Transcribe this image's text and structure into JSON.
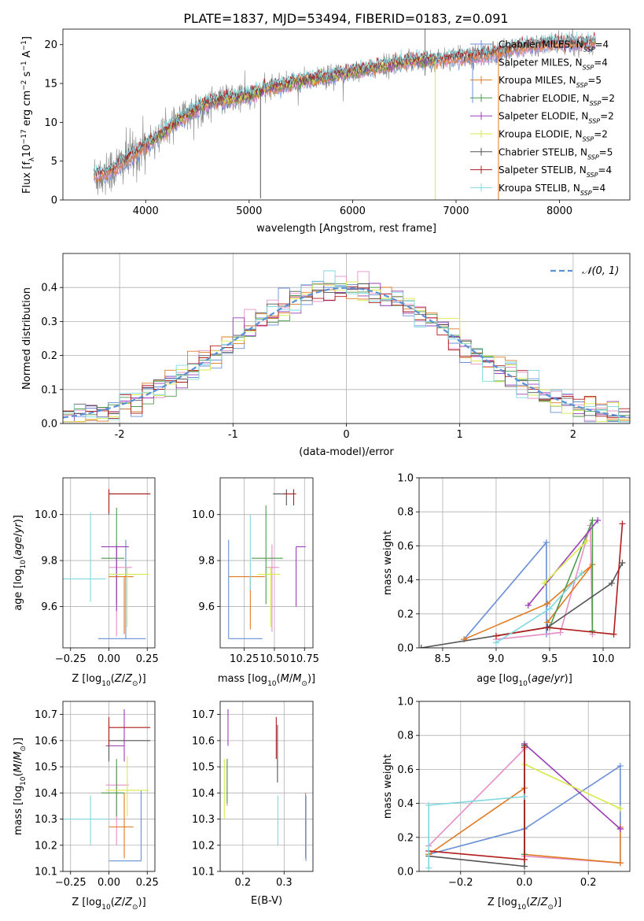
{
  "figure": {
    "title": "PLATE=1837, MJD=53494, FIBERID=0183, z=0.091"
  },
  "series_styles": [
    {
      "name": "Chabrier MILES",
      "color": "#6a8fd6"
    },
    {
      "name": "Salpeter MILES",
      "color": "#e58fc6"
    },
    {
      "name": "Kroupa MILES",
      "color": "#e07b22"
    },
    {
      "name": "Chabrier ELODIE",
      "color": "#4e9a4e"
    },
    {
      "name": "Salpeter ELODIE",
      "color": "#9b3fb8"
    },
    {
      "name": "Kroupa ELODIE",
      "color": "#d8ea4a"
    },
    {
      "name": "Chabrier STELIB",
      "color": "#555555"
    },
    {
      "name": "Salpeter STELIB",
      "color": "#b01c1c"
    },
    {
      "name": "Kroupa STELIB",
      "color": "#7fd8e0"
    }
  ],
  "chart_data": [
    {
      "id": "spectrum",
      "type": "line",
      "xlabel": "wavelength [Angstrom, rest frame]",
      "ylabel": "Flux [f_λ 10^-17 erg cm^-2 s^-1 A^-1]",
      "xlim": [
        3200,
        8680
      ],
      "ylim": [
        0,
        22
      ],
      "xticks": [
        4000,
        5000,
        6000,
        7000,
        8000
      ],
      "yticks": [
        0,
        5,
        10,
        15,
        20
      ],
      "legend_position": "top-right",
      "legend": [
        "Chabrier MILES, N_SSP=4",
        "Salpeter MILES, N_SSP=4",
        "Kroupa MILES, N_SSP=5",
        "Chabrier ELODIE, N_SSP=2",
        "Salpeter ELODIE, N_SSP=2",
        "Kroupa ELODIE, N_SSP=2",
        "Chabrier STELIB, N_SSP=5",
        "Salpeter STELIB, N_SSP=4",
        "Kroupa STELIB, N_SSP=4"
      ],
      "data_continuum": {
        "x": [
          3500,
          3700,
          3900,
          4000,
          4200,
          4400,
          4600,
          4800,
          5000,
          5200,
          5400,
          5600,
          5800,
          6000,
          6200,
          6400,
          6600,
          6800,
          7000,
          7200,
          7400,
          7600,
          7800,
          8000,
          8200,
          8350
        ],
        "y": [
          3.0,
          4.0,
          6.0,
          7.0,
          9.0,
          11.0,
          12.5,
          13.0,
          13.5,
          14.5,
          15.0,
          15.5,
          16.0,
          16.5,
          17.0,
          17.5,
          18.0,
          18.0,
          18.3,
          18.6,
          19.0,
          19.6,
          20.0,
          20.2,
          20.1,
          20.3
        ]
      },
      "spike_features": [
        {
          "x": 5110,
          "y": 0.2,
          "color": "#555555"
        },
        {
          "x": 6800,
          "y": 0.0,
          "color": "#d8ea4a"
        },
        {
          "x": 7410,
          "y": 0.0,
          "color": "#e07b22"
        },
        {
          "x": 7160,
          "y": 12.5,
          "color": "#6a8fd6"
        },
        {
          "x": 6700,
          "y": 22.0,
          "color": "#777777"
        }
      ]
    },
    {
      "id": "residuals",
      "type": "histogram",
      "xlabel": "(data-model)/error",
      "ylabel": "Normed distribution",
      "xlim": [
        -2.5,
        2.5
      ],
      "ylim": [
        0,
        0.5
      ],
      "xticks": [
        -2,
        -1,
        0,
        1,
        2
      ],
      "yticks": [
        0.0,
        0.1,
        0.2,
        0.3,
        0.4
      ],
      "grid": true,
      "legend_position": "top-right",
      "legend": [
        "𝒩(0, 1)"
      ],
      "reference_color": "#5b8fd6",
      "bin_width": 0.1,
      "bin_start": -2.5
    },
    {
      "id": "age_vs_Z",
      "type": "errorbar",
      "xlabel": "Z [log10(Z/Z⊙)]",
      "ylabel": "age [log10(age/yr)]",
      "xlim": [
        -0.3,
        0.3
      ],
      "ylim": [
        9.42,
        10.16
      ],
      "xticks": [
        -0.25,
        0.0,
        0.25
      ],
      "xtick_labels": [
        "−0.25",
        "0.00",
        "0.25"
      ],
      "yticks": [
        9.6,
        9.8,
        10.0
      ],
      "grid": true,
      "points": [
        {
          "s": 0,
          "x": 0.11,
          "xerr": [
            0.18,
            0.13
          ],
          "y": 9.46,
          "yerr": [
            0.0,
            0.43
          ]
        },
        {
          "s": 1,
          "x": 0.05,
          "xerr": [
            0.05,
            0.1
          ],
          "y": 9.77,
          "yerr": [
            0.3,
            0.1
          ]
        },
        {
          "s": 2,
          "x": 0.1,
          "xerr": [
            0.1,
            0.06
          ],
          "y": 9.73,
          "yerr": [
            0.25,
            0.0
          ]
        },
        {
          "s": 3,
          "x": 0.05,
          "xerr": [
            0.1,
            0.05
          ],
          "y": 9.81,
          "yerr": [
            0.2,
            0.22
          ]
        },
        {
          "s": 4,
          "x": 0.05,
          "xerr": [
            0.1,
            0.08
          ],
          "y": 9.86,
          "yerr": [
            0.28,
            0.0
          ]
        },
        {
          "s": 5,
          "x": 0.12,
          "xerr": [
            0.12,
            0.14
          ],
          "y": 9.74,
          "yerr": [
            0.23,
            0.03
          ]
        },
        {
          "s": 6,
          "x": 0.0,
          "xerr": [
            0.0,
            0.27
          ],
          "y": 10.09,
          "yerr": [
            0.09,
            0.02
          ]
        },
        {
          "s": 7,
          "x": 0.0,
          "xerr": [
            0.0,
            0.27
          ],
          "y": 10.09,
          "yerr": [
            0.08,
            0.02
          ]
        },
        {
          "s": 8,
          "x": -0.12,
          "xerr": [
            0.18,
            0.1
          ],
          "y": 9.72,
          "yerr": [
            0.1,
            0.29
          ]
        }
      ]
    },
    {
      "id": "age_vs_mass",
      "type": "errorbar",
      "xlabel": "mass [log10(M/M⊙)]",
      "ylabel": "",
      "xlim": [
        10.05,
        10.82
      ],
      "ylim": [
        9.42,
        10.16
      ],
      "xticks": [
        10.25,
        10.5,
        10.75
      ],
      "xtick_labels": [
        "10.25",
        "10.50",
        "10.75"
      ],
      "yticks": [
        9.6,
        9.8,
        10.0
      ],
      "grid": true,
      "points": [
        {
          "s": 0,
          "x": 10.12,
          "xerr": [
            0.0,
            0.28
          ],
          "y": 9.46,
          "yerr": [
            0.0,
            0.43
          ]
        },
        {
          "s": 1,
          "x": 10.48,
          "xerr": [
            0.05,
            0.06
          ],
          "y": 9.77,
          "yerr": [
            0.28,
            0.1
          ]
        },
        {
          "s": 2,
          "x": 10.3,
          "xerr": [
            0.18,
            0.12
          ],
          "y": 9.73,
          "yerr": [
            0.23,
            0.0
          ]
        },
        {
          "s": 3,
          "x": 10.43,
          "xerr": [
            0.12,
            0.14
          ],
          "y": 9.81,
          "yerr": [
            0.2,
            0.23
          ]
        },
        {
          "s": 4,
          "x": 10.68,
          "xerr": [
            0.0,
            0.08
          ],
          "y": 9.86,
          "yerr": [
            0.26,
            0.0
          ]
        },
        {
          "s": 5,
          "x": 10.47,
          "xerr": [
            0.11,
            0.08
          ],
          "y": 9.74,
          "yerr": [
            0.23,
            0.03
          ]
        },
        {
          "s": 6,
          "x": 10.6,
          "xerr": [
            0.11,
            0.0
          ],
          "y": 10.09,
          "yerr": [
            0.05,
            0.02
          ]
        },
        {
          "s": 7,
          "x": 10.66,
          "xerr": [
            0.08,
            0.02
          ],
          "y": 10.09,
          "yerr": [
            0.05,
            0.02
          ]
        },
        {
          "s": 8,
          "x": 10.3,
          "xerr": [
            0.0,
            0.0
          ],
          "y": 9.72,
          "yerr": [
            0.05,
            0.28
          ]
        }
      ]
    },
    {
      "id": "mass_weight_vs_age",
      "type": "line",
      "xlabel": "age [log10(age/yr)]",
      "ylabel": "mass weight",
      "xlim": [
        8.28,
        10.25
      ],
      "ylim": [
        0,
        1.0
      ],
      "xticks": [
        8.5,
        9.0,
        9.5,
        10.0
      ],
      "xtick_labels": [
        "8.5",
        "9.0",
        "9.5",
        "10.0"
      ],
      "yticks": [
        0.0,
        0.2,
        0.4,
        0.6,
        0.8,
        1.0
      ],
      "grid": true,
      "series": [
        {
          "s": 0,
          "x": [
            8.7,
            9.47,
            9.47,
            9.47
          ],
          "y": [
            0.05,
            0.62,
            0.12,
            0.08
          ]
        },
        {
          "s": 1,
          "x": [
            9.0,
            9.6,
            9.88,
            9.9
          ],
          "y": [
            0.05,
            0.09,
            0.72,
            0.08
          ]
        },
        {
          "s": 2,
          "x": [
            8.7,
            9.48,
            9.9,
            9.48
          ],
          "y": [
            0.05,
            0.26,
            0.49,
            0.15
          ]
        },
        {
          "s": 3,
          "x": [
            9.5,
            9.9,
            9.9
          ],
          "y": [
            0.12,
            0.75,
            0.1
          ]
        },
        {
          "s": 4,
          "x": [
            9.3,
            9.95
          ],
          "y": [
            0.25,
            0.75
          ]
        },
        {
          "s": 5,
          "x": [
            9.45,
            9.85
          ],
          "y": [
            0.38,
            0.63
          ]
        },
        {
          "s": 6,
          "x": [
            8.3,
            9.48,
            10.08,
            10.18
          ],
          "y": [
            0.0,
            0.12,
            0.38,
            0.5
          ]
        },
        {
          "s": 7,
          "x": [
            9.0,
            9.48,
            10.1,
            10.18
          ],
          "y": [
            0.07,
            0.12,
            0.08,
            0.73
          ]
        },
        {
          "s": 8,
          "x": [
            9.0,
            9.5,
            9.8
          ],
          "y": [
            0.03,
            0.23,
            0.44
          ]
        }
      ]
    },
    {
      "id": "mass_vs_Z",
      "type": "errorbar",
      "xlabel": "Z [log10(Z/Z⊙)]",
      "ylabel": "mass [log10(M/M⊙)]",
      "xlim": [
        -0.3,
        0.3
      ],
      "ylim": [
        10.1,
        10.75
      ],
      "xticks": [
        -0.25,
        0.0,
        0.25
      ],
      "xtick_labels": [
        "−0.25",
        "0.00",
        "0.25"
      ],
      "yticks": [
        10.1,
        10.2,
        10.3,
        10.4,
        10.5,
        10.6,
        10.7
      ],
      "grid": true,
      "points": [
        {
          "s": 0,
          "x": 0.21,
          "xerr": [
            0.21,
            0.0
          ],
          "y": 10.14,
          "yerr": [
            0.0,
            0.27
          ]
        },
        {
          "s": 1,
          "x": 0.05,
          "xerr": [
            0.07,
            0.08
          ],
          "y": 10.43,
          "yerr": [
            0.23,
            0.07
          ]
        },
        {
          "s": 2,
          "x": 0.1,
          "xerr": [
            0.1,
            0.06
          ],
          "y": 10.27,
          "yerr": [
            0.12,
            0.13
          ]
        },
        {
          "s": 3,
          "x": 0.05,
          "xerr": [
            0.1,
            0.05
          ],
          "y": 10.4,
          "yerr": [
            0.09,
            0.13
          ]
        },
        {
          "s": 4,
          "x": 0.1,
          "xerr": [
            0.12,
            0.0
          ],
          "y": 10.58,
          "yerr": [
            0.06,
            0.14
          ]
        },
        {
          "s": 5,
          "x": 0.12,
          "xerr": [
            0.14,
            0.14
          ],
          "y": 10.41,
          "yerr": [
            0.1,
            0.13
          ]
        },
        {
          "s": 6,
          "x": 0.0,
          "xerr": [
            0.0,
            0.27
          ],
          "y": 10.6,
          "yerr": [
            0.08,
            0.07
          ]
        },
        {
          "s": 7,
          "x": 0.0,
          "xerr": [
            0.0,
            0.27
          ],
          "y": 10.65,
          "yerr": [
            0.07,
            0.04
          ]
        },
        {
          "s": 8,
          "x": -0.12,
          "xerr": [
            0.18,
            0.12
          ],
          "y": 10.3,
          "yerr": [
            0.1,
            0.09
          ]
        }
      ]
    },
    {
      "id": "mass_vs_ebv",
      "type": "errorbar",
      "xlabel": "E(B-V)",
      "ylabel": "",
      "xlim": [
        0.145,
        0.37
      ],
      "ylim": [
        10.1,
        10.75
      ],
      "xticks": [
        0.2,
        0.3
      ],
      "xtick_labels": [
        "0.2",
        "0.3"
      ],
      "yticks": [
        10.1,
        10.2,
        10.3,
        10.4,
        10.5,
        10.6,
        10.7
      ],
      "grid": true,
      "points": [
        {
          "s": 0,
          "x": 0.353,
          "y": 10.14,
          "yerr": [
            0.0,
            0.25
          ]
        },
        {
          "s": 1,
          "x": 0.162,
          "y": 10.43,
          "yerr": [
            0.08,
            0.1
          ]
        },
        {
          "s": 2,
          "x": 0.352,
          "y": 10.27,
          "yerr": [
            0.12,
            0.13
          ]
        },
        {
          "s": 3,
          "x": 0.162,
          "y": 10.4,
          "yerr": [
            0.04,
            0.13
          ]
        },
        {
          "s": 4,
          "x": 0.164,
          "y": 10.58,
          "yerr": [
            0.0,
            0.14
          ]
        },
        {
          "s": 5,
          "x": 0.155,
          "y": 10.41,
          "yerr": [
            0.11,
            0.12
          ]
        },
        {
          "s": 6,
          "x": 0.284,
          "y": 10.55,
          "yerr": [
            0.11,
            0.11
          ]
        },
        {
          "s": 7,
          "x": 0.281,
          "y": 10.6,
          "yerr": [
            0.07,
            0.09
          ]
        },
        {
          "s": 8,
          "x": 0.285,
          "y": 10.3,
          "yerr": [
            0.1,
            0.09
          ]
        }
      ]
    },
    {
      "id": "mass_weight_vs_Z",
      "type": "line",
      "xlabel": "Z [log10(Z/Z⊙)]",
      "ylabel": "mass weight",
      "xlim": [
        -0.33,
        0.33
      ],
      "ylim": [
        0,
        1.0
      ],
      "xticks": [
        -0.2,
        0.0,
        0.2
      ],
      "xtick_labels": [
        "−0.2",
        "0.0",
        "0.2"
      ],
      "yticks": [
        0.0,
        0.2,
        0.4,
        0.6,
        0.8,
        1.0
      ],
      "grid": true,
      "series": [
        {
          "s": 0,
          "x": [
            -0.3,
            0.0,
            0.3,
            0.3
          ],
          "y": [
            0.1,
            0.25,
            0.62,
            0.05
          ]
        },
        {
          "s": 1,
          "x": [
            -0.3,
            0.0,
            0.0,
            0.3
          ],
          "y": [
            0.15,
            0.72,
            0.09,
            0.05
          ]
        },
        {
          "s": 2,
          "x": [
            -0.3,
            0.0,
            0.0,
            0.3,
            0.3
          ],
          "y": [
            0.1,
            0.49,
            0.1,
            0.05,
            0.26
          ]
        },
        {
          "s": 3,
          "x": [
            0.0,
            0.0
          ],
          "y": [
            0.75,
            0.1
          ]
        },
        {
          "s": 4,
          "x": [
            0.0,
            0.3,
            0.3
          ],
          "y": [
            0.75,
            0.25,
            0.25
          ]
        },
        {
          "s": 5,
          "x": [
            0.0,
            0.3
          ],
          "y": [
            0.63,
            0.37
          ]
        },
        {
          "s": 6,
          "x": [
            -0.3,
            0.0,
            0.0
          ],
          "y": [
            0.09,
            0.03,
            0.74
          ]
        },
        {
          "s": 7,
          "x": [
            -0.3,
            0.0,
            0.0
          ],
          "y": [
            0.12,
            0.07,
            0.73
          ]
        },
        {
          "s": 8,
          "x": [
            -0.3,
            -0.3,
            0.0
          ],
          "y": [
            0.02,
            0.39,
            0.44
          ]
        }
      ]
    }
  ]
}
